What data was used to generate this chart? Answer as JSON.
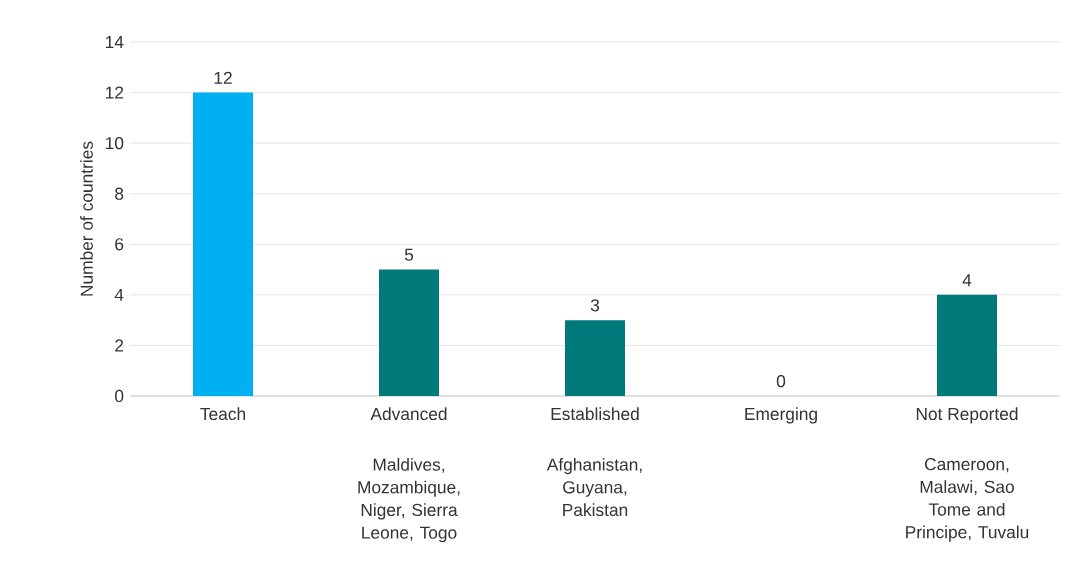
{
  "chart_data": {
    "type": "bar",
    "ylabel": "Number of countries",
    "categories": [
      "Teach",
      "Advanced",
      "Established",
      "Emerging",
      "Not Reported"
    ],
    "values": [
      12,
      5,
      3,
      0,
      4
    ],
    "colors": [
      "#00b0f0",
      "#007a7a",
      "#007a7a",
      "#007a7a",
      "#007a7a"
    ],
    "ylim": [
      0,
      14
    ],
    "yticks": [
      0,
      2,
      4,
      6,
      8,
      10,
      12,
      14
    ],
    "grid": "y",
    "data_labels": true,
    "annotations": [
      "Maldives, Mozambique, Niger, Sierra Leone, Togo",
      "Afghanistan, Guyana, Pakistan",
      "Cameroon, Malawi, Sao Tome and Principe, Tuvalu"
    ]
  }
}
